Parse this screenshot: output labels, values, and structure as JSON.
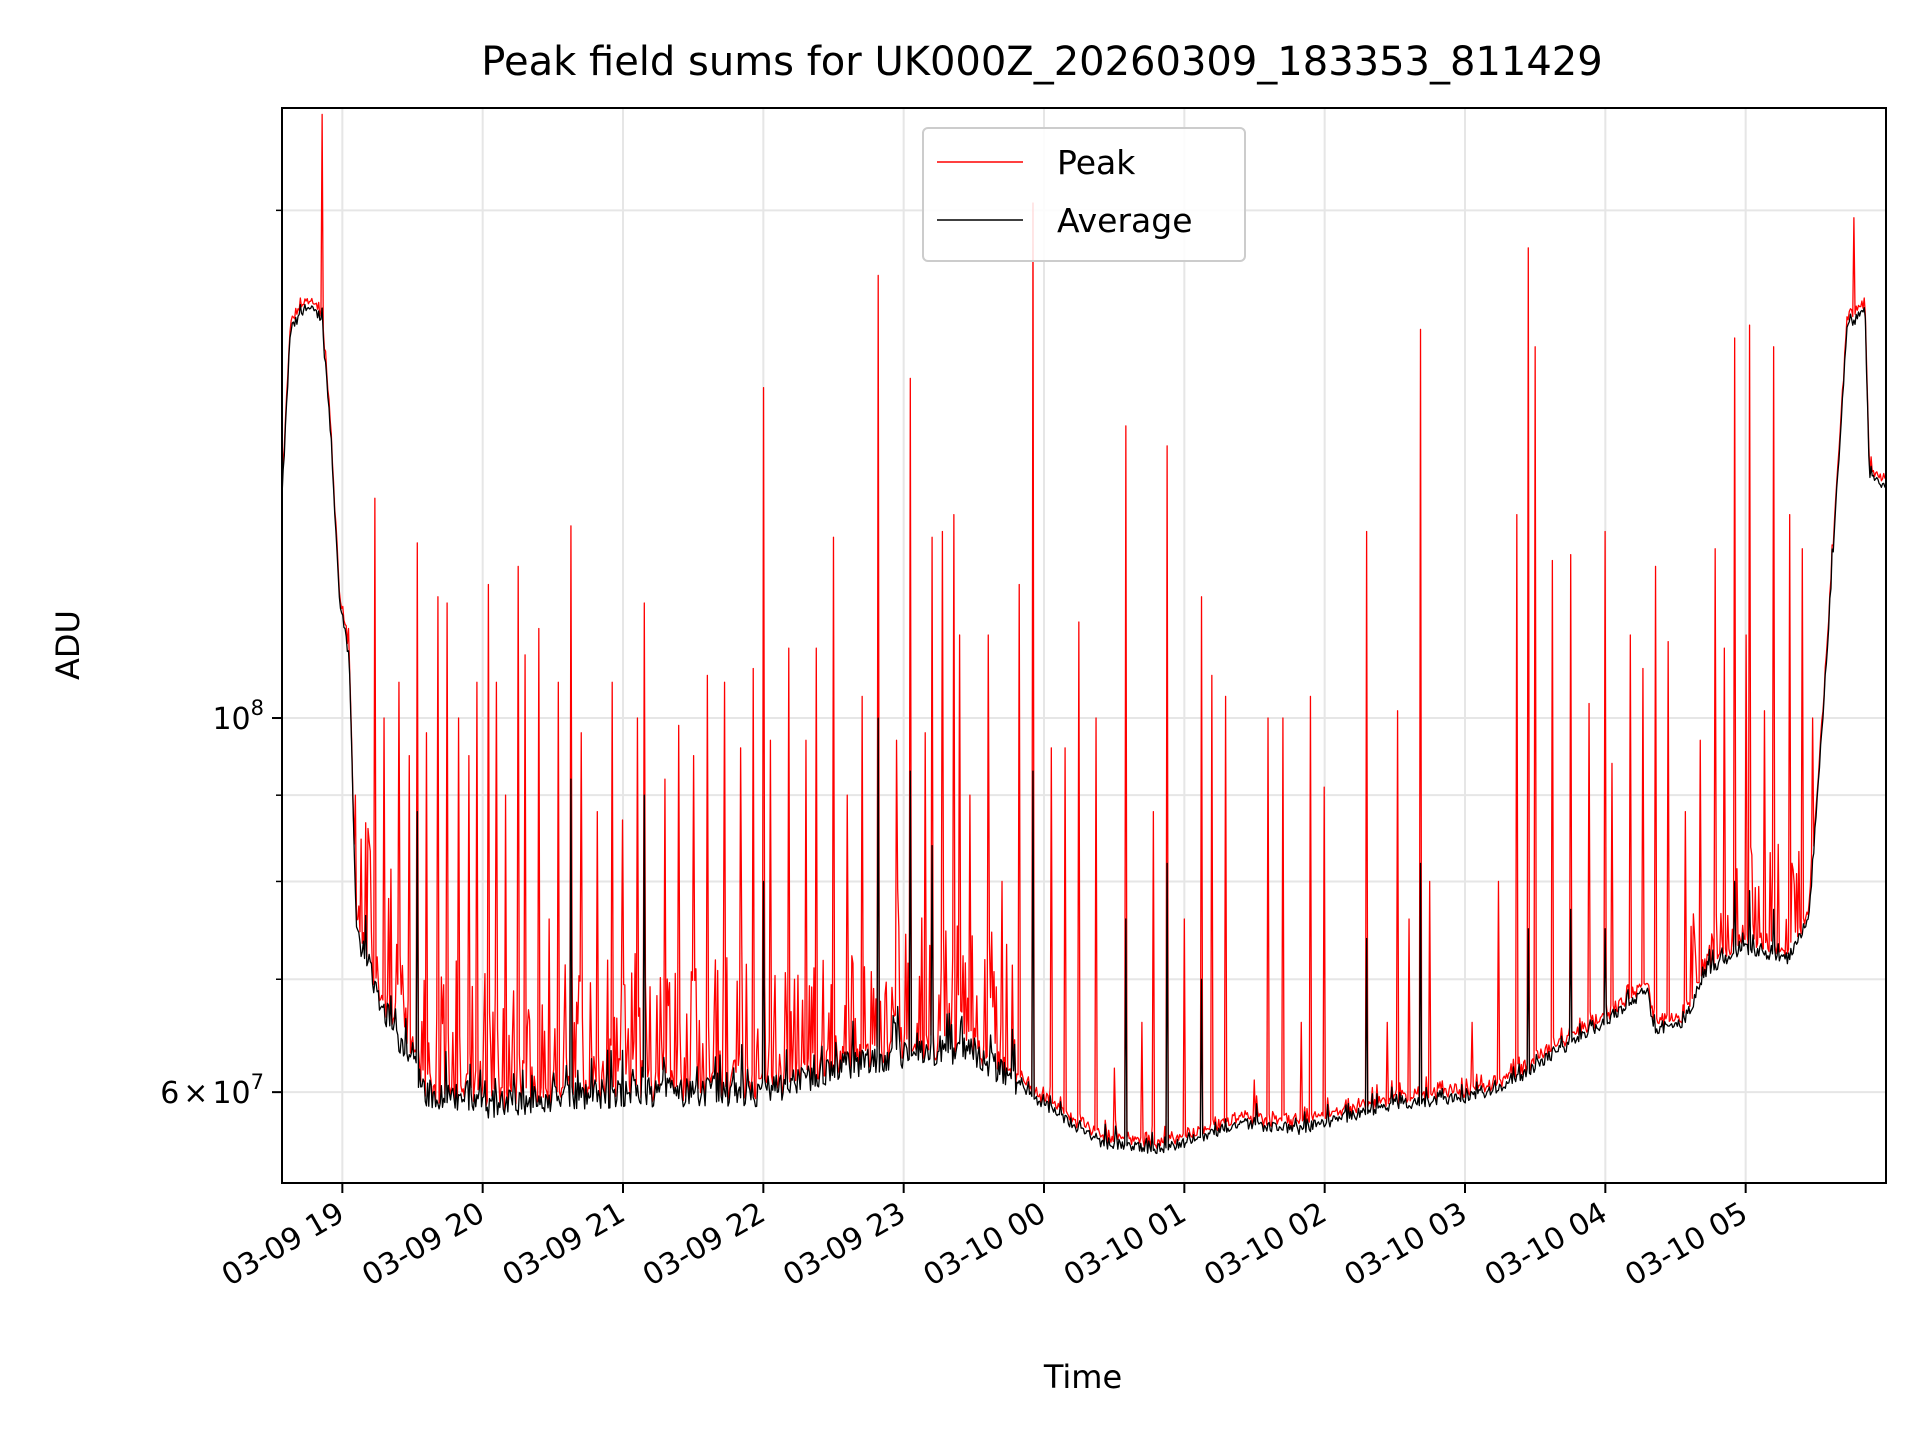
{
  "chart_data": {
    "type": "line",
    "title": "Peak field sums for UK000Z_20260309_183353_811429",
    "xlabel": "Time",
    "ylabel": "ADU",
    "yscale": "log",
    "ylim": [
      53000000,
      230000000
    ],
    "xlim_hours": [
      -0.43,
      11.0
    ],
    "grid": true,
    "legend_position": "top-center",
    "x_ticks": [
      {
        "label": "03-09 19",
        "hour": 0
      },
      {
        "label": "03-09 20",
        "hour": 1
      },
      {
        "label": "03-09 21",
        "hour": 2
      },
      {
        "label": "03-09 22",
        "hour": 3
      },
      {
        "label": "03-09 23",
        "hour": 4
      },
      {
        "label": "03-10 00",
        "hour": 5
      },
      {
        "label": "03-10 01",
        "hour": 6
      },
      {
        "label": "03-10 02",
        "hour": 7
      },
      {
        "label": "03-10 03",
        "hour": 8
      },
      {
        "label": "03-10 04",
        "hour": 9
      },
      {
        "label": "03-10 05",
        "hour": 10
      }
    ],
    "y_major_ticks": [
      {
        "label_base": "10",
        "label_exp": "8",
        "value": 100000000
      },
      {
        "label_pre": "6",
        "label_mid": "×",
        "label_base": "10",
        "label_exp": "7",
        "value": 60000000
      }
    ],
    "y_minor_ticks": [
      70000000,
      80000000,
      90000000,
      200000000
    ],
    "baseline_knots": [
      [
        -0.43,
        135000000
      ],
      [
        -0.37,
        170000000
      ],
      [
        -0.25,
        175000000
      ],
      [
        -0.15,
        173000000
      ],
      [
        -0.1,
        155000000
      ],
      [
        -0.02,
        118000000
      ],
      [
        0.05,
        108000000
      ],
      [
        0.1,
        75000000
      ],
      [
        0.3,
        67000000
      ],
      [
        0.6,
        60000000
      ],
      [
        1.0,
        59000000
      ],
      [
        1.5,
        59500000
      ],
      [
        2.0,
        60000000
      ],
      [
        2.5,
        60000000
      ],
      [
        3.0,
        60000000
      ],
      [
        3.5,
        62000000
      ],
      [
        4.0,
        63000000
      ],
      [
        4.5,
        63500000
      ],
      [
        5.0,
        59000000
      ],
      [
        5.4,
        56000000
      ],
      [
        5.8,
        55500000
      ],
      [
        6.0,
        56000000
      ],
      [
        6.4,
        57500000
      ],
      [
        6.8,
        57000000
      ],
      [
        7.0,
        57500000
      ],
      [
        7.5,
        59000000
      ],
      [
        8.0,
        59500000
      ],
      [
        8.3,
        60500000
      ],
      [
        8.6,
        63000000
      ],
      [
        9.0,
        66000000
      ],
      [
        9.3,
        69000000
      ],
      [
        9.35,
        65000000
      ],
      [
        9.55,
        66000000
      ],
      [
        9.75,
        71000000
      ],
      [
        10.0,
        73000000
      ],
      [
        10.3,
        72000000
      ],
      [
        10.45,
        76000000
      ],
      [
        10.55,
        100000000
      ],
      [
        10.72,
        170000000
      ],
      [
        10.85,
        175000000
      ],
      [
        10.88,
        140000000
      ],
      [
        11.0,
        137000000
      ]
    ],
    "series": [
      {
        "name": "Peak",
        "color": "#ff0000",
        "spikes": [
          [
            -0.14,
            228000000
          ],
          [
            -0.2,
            170000000
          ],
          [
            -0.16,
            160000000
          ],
          [
            0.04,
            113000000
          ],
          [
            0.09,
            90000000
          ],
          [
            0.18,
            86000000
          ],
          [
            0.23,
            135000000
          ],
          [
            0.3,
            100000000
          ],
          [
            0.4,
            105000000
          ],
          [
            0.48,
            95000000
          ],
          [
            0.53,
            127000000
          ],
          [
            0.6,
            98000000
          ],
          [
            0.68,
            118000000
          ],
          [
            0.75,
            117000000
          ],
          [
            0.83,
            100000000
          ],
          [
            0.9,
            95000000
          ],
          [
            0.96,
            105000000
          ],
          [
            1.04,
            120000000
          ],
          [
            1.1,
            105000000
          ],
          [
            1.16,
            90000000
          ],
          [
            1.25,
            123000000
          ],
          [
            1.3,
            109000000
          ],
          [
            1.4,
            113000000
          ],
          [
            1.47,
            76000000
          ],
          [
            1.54,
            105000000
          ],
          [
            1.63,
            130000000
          ],
          [
            1.7,
            98000000
          ],
          [
            1.82,
            88000000
          ],
          [
            1.92,
            105000000
          ],
          [
            2.0,
            87000000
          ],
          [
            2.1,
            100000000
          ],
          [
            2.15,
            117000000
          ],
          [
            2.3,
            92000000
          ],
          [
            2.4,
            99000000
          ],
          [
            2.5,
            95000000
          ],
          [
            2.6,
            106000000
          ],
          [
            2.72,
            105000000
          ],
          [
            2.84,
            96000000
          ],
          [
            2.93,
            107000000
          ],
          [
            3.0,
            157000000
          ],
          [
            3.05,
            97000000
          ],
          [
            3.18,
            110000000
          ],
          [
            3.3,
            97000000
          ],
          [
            3.38,
            110000000
          ],
          [
            3.5,
            128000000
          ],
          [
            3.6,
            90000000
          ],
          [
            3.7,
            103000000
          ],
          [
            3.82,
            183000000
          ],
          [
            3.95,
            97000000
          ],
          [
            4.05,
            159000000
          ],
          [
            4.15,
            98000000
          ],
          [
            4.2,
            128000000
          ],
          [
            4.28,
            129000000
          ],
          [
            4.36,
            132000000
          ],
          [
            4.4,
            112000000
          ],
          [
            4.47,
            90000000
          ],
          [
            4.6,
            112000000
          ],
          [
            4.7,
            80000000
          ],
          [
            4.82,
            120000000
          ],
          [
            4.92,
            202000000
          ],
          [
            5.05,
            96000000
          ],
          [
            5.15,
            96000000
          ],
          [
            5.25,
            114000000
          ],
          [
            5.37,
            100000000
          ],
          [
            5.5,
            62000000
          ],
          [
            5.58,
            149000000
          ],
          [
            5.7,
            66000000
          ],
          [
            5.78,
            88000000
          ],
          [
            5.88,
            145000000
          ],
          [
            6.0,
            76000000
          ],
          [
            6.12,
            118000000
          ],
          [
            6.2,
            106000000
          ],
          [
            6.29,
            103000000
          ],
          [
            6.5,
            61000000
          ],
          [
            6.6,
            100000000
          ],
          [
            6.7,
            100000000
          ],
          [
            6.83,
            66000000
          ],
          [
            6.9,
            103000000
          ],
          [
            7.0,
            91000000
          ],
          [
            7.3,
            129000000
          ],
          [
            7.45,
            66000000
          ],
          [
            7.52,
            101000000
          ],
          [
            7.6,
            76000000
          ],
          [
            7.68,
            170000000
          ],
          [
            7.75,
            80000000
          ],
          [
            8.05,
            66000000
          ],
          [
            8.24,
            80000000
          ],
          [
            8.37,
            132000000
          ],
          [
            8.45,
            190000000
          ],
          [
            8.5,
            166000000
          ],
          [
            8.62,
            124000000
          ],
          [
            8.75,
            125000000
          ],
          [
            8.88,
            102000000
          ],
          [
            9.0,
            129000000
          ],
          [
            9.05,
            94000000
          ],
          [
            9.18,
            112000000
          ],
          [
            9.27,
            107000000
          ],
          [
            9.36,
            123000000
          ],
          [
            9.45,
            111000000
          ],
          [
            9.57,
            88000000
          ],
          [
            9.68,
            97000000
          ],
          [
            9.78,
            126000000
          ],
          [
            9.85,
            110000000
          ],
          [
            9.92,
            168000000
          ],
          [
            10.0,
            112000000
          ],
          [
            10.03,
            171000000
          ],
          [
            10.13,
            101000000
          ],
          [
            10.2,
            166000000
          ],
          [
            10.31,
            132000000
          ],
          [
            10.4,
            126000000
          ],
          [
            10.48,
            100000000
          ],
          [
            10.77,
            198000000
          ]
        ]
      },
      {
        "name": "Average",
        "color": "#000000",
        "spikes": [
          [
            -0.14,
            175000000
          ],
          [
            0.53,
            88000000
          ],
          [
            1.63,
            92000000
          ],
          [
            2.15,
            90000000
          ],
          [
            3.0,
            80000000
          ],
          [
            3.82,
            100000000
          ],
          [
            4.05,
            93000000
          ],
          [
            4.2,
            84000000
          ],
          [
            4.92,
            93000000
          ],
          [
            5.58,
            76000000
          ],
          [
            5.88,
            82000000
          ],
          [
            6.12,
            70000000
          ],
          [
            7.3,
            74000000
          ],
          [
            7.68,
            82000000
          ],
          [
            8.45,
            75000000
          ],
          [
            8.75,
            77000000
          ],
          [
            9.0,
            75000000
          ],
          [
            9.92,
            80000000
          ],
          [
            10.03,
            79000000
          ],
          [
            10.2,
            77000000
          ]
        ]
      }
    ]
  }
}
